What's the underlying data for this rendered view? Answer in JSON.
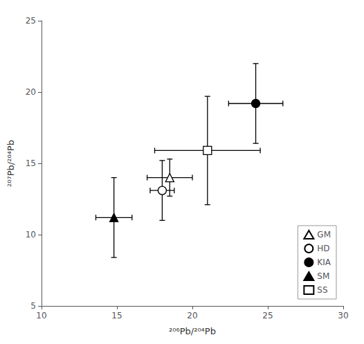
{
  "chart_data": {
    "type": "scatter",
    "xlabel": "²⁰⁶Pb/²⁰⁴Pb",
    "ylabel": "²⁰⁷Pb/²⁰⁴Pb",
    "xlim": [
      10,
      30
    ],
    "ylim": [
      5,
      25
    ],
    "xticks": [
      10,
      15,
      20,
      25,
      30
    ],
    "yticks": [
      5,
      10,
      15,
      20,
      25
    ],
    "grid": false,
    "legend": "lower right",
    "series": [
      {
        "name": "GM",
        "marker": "triangle",
        "color": "white",
        "x": [
          18.5
        ],
        "values": [
          14.0
        ],
        "xerr": [
          1.5
        ],
        "yerr": [
          1.3
        ]
      },
      {
        "name": "HD",
        "marker": "circle",
        "color": "white",
        "x": [
          18.0
        ],
        "values": [
          13.1
        ],
        "xerr": [
          0.8
        ],
        "yerr": [
          2.1
        ]
      },
      {
        "name": "KIA",
        "marker": "circle",
        "color": "black",
        "x": [
          24.2
        ],
        "values": [
          19.2
        ],
        "xerr": [
          1.8
        ],
        "yerr": [
          2.8
        ]
      },
      {
        "name": "SM",
        "marker": "triangle",
        "color": "black",
        "x": [
          14.8
        ],
        "values": [
          11.2
        ],
        "xerr": [
          1.2
        ],
        "yerr": [
          2.8
        ]
      },
      {
        "name": "SS",
        "marker": "square",
        "color": "white",
        "x": [
          21.0
        ],
        "values": [
          15.9
        ],
        "xerr": [
          3.5
        ],
        "yerr": [
          3.8
        ]
      }
    ]
  }
}
